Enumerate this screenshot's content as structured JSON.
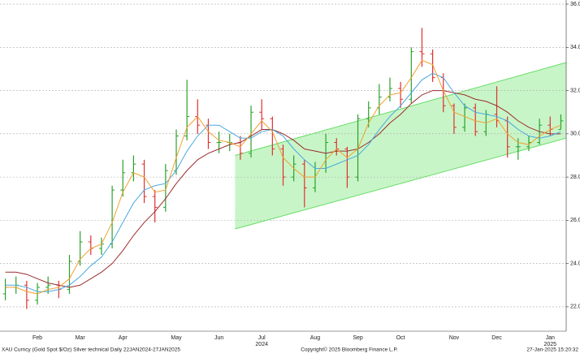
{
  "chart_data": {
    "type": "ohlc",
    "title": "XAU Curncy (Gold Spot  $/Oz) Silver technical  Daily 22JAN2024-27JAN2025",
    "copyright": "Copyright© 2025 Bloomberg Finance L.P.",
    "timestamp": "27-Jan-2025 15:20:32",
    "categories": [
      null,
      null,
      null,
      "Feb",
      null,
      null,
      null,
      "Mar",
      null,
      null,
      null,
      "Apr",
      null,
      null,
      null,
      null,
      "May",
      null,
      null,
      null,
      "Jun",
      null,
      null,
      null,
      "Jul",
      null,
      null,
      null,
      null,
      "Aug",
      null,
      null,
      null,
      "Sep",
      null,
      null,
      null,
      "Oct",
      null,
      null,
      null,
      null,
      "Nov",
      null,
      null,
      null,
      "Dec",
      null,
      null,
      null,
      null,
      "Jan",
      null
    ],
    "category_years": [
      null,
      null,
      null,
      null,
      null,
      null,
      null,
      null,
      null,
      null,
      null,
      null,
      null,
      null,
      null,
      null,
      null,
      null,
      null,
      null,
      null,
      null,
      null,
      null,
      "2024",
      null,
      null,
      null,
      null,
      null,
      null,
      null,
      null,
      null,
      null,
      null,
      null,
      null,
      null,
      null,
      null,
      null,
      null,
      null,
      null,
      null,
      null,
      null,
      null,
      null,
      null,
      "2025",
      null
    ],
    "open": [
      22.6,
      22.9,
      23.0,
      22.3,
      22.9,
      23.0,
      22.8,
      24.1,
      25.0,
      24.7,
      24.9,
      27.4,
      28.2,
      28.6,
      27.1,
      26.6,
      28.3,
      29.9,
      30.8,
      30.4,
      29.6,
      29.6,
      29.6,
      29.1,
      31.0,
      30.7,
      29.3,
      28.0,
      28.6,
      27.5,
      28.4,
      29.6,
      29.3,
      28.0,
      30.7,
      31.2,
      31.7,
      32.1,
      31.6,
      33.8,
      33.7,
      32.6,
      31.3,
      30.3,
      31.2,
      30.1,
      30.9,
      30.6,
      29.4,
      29.4,
      29.6,
      30.4,
      30.2
    ],
    "high": [
      23.3,
      23.4,
      23.2,
      23.1,
      23.4,
      23.2,
      24.4,
      25.5,
      25.3,
      25.2,
      27.6,
      28.8,
      29.0,
      28.8,
      27.4,
      28.6,
      30.2,
      32.5,
      31.6,
      30.7,
      30.1,
      30.0,
      29.9,
      31.3,
      31.6,
      30.8,
      29.5,
      29.0,
      28.8,
      28.7,
      30.0,
      29.8,
      29.4,
      30.9,
      31.5,
      32.3,
      32.6,
      32.4,
      34.0,
      34.9,
      33.9,
      32.8,
      31.4,
      31.4,
      31.4,
      31.1,
      32.2,
      30.8,
      29.8,
      29.9,
      30.7,
      30.8,
      30.9
    ],
    "low": [
      22.3,
      22.6,
      21.9,
      22.1,
      22.6,
      22.4,
      22.6,
      23.9,
      24.4,
      24.4,
      24.7,
      27.1,
      27.8,
      26.8,
      25.9,
      26.4,
      28.1,
      29.7,
      30.0,
      29.3,
      29.1,
      29.2,
      28.8,
      28.9,
      30.2,
      29.0,
      27.6,
      27.8,
      26.6,
      27.3,
      28.2,
      29.0,
      27.5,
      27.8,
      30.3,
      30.9,
      31.5,
      31.2,
      31.4,
      33.1,
      32.4,
      31.0,
      30.0,
      30.1,
      29.9,
      29.9,
      30.3,
      28.9,
      28.8,
      29.2,
      29.5,
      29.9,
      30.2
    ],
    "close": [
      22.9,
      23.0,
      22.3,
      22.9,
      23.0,
      22.8,
      24.1,
      25.0,
      24.7,
      24.9,
      27.4,
      28.2,
      28.6,
      27.1,
      26.6,
      28.3,
      29.9,
      30.8,
      30.4,
      29.6,
      29.6,
      29.6,
      29.1,
      31.0,
      30.7,
      29.3,
      28.0,
      28.6,
      27.5,
      28.4,
      29.6,
      29.3,
      28.0,
      30.7,
      31.2,
      31.7,
      32.1,
      31.6,
      33.8,
      33.7,
      32.6,
      31.3,
      30.3,
      31.2,
      30.1,
      30.9,
      30.6,
      29.4,
      29.4,
      29.6,
      30.4,
      30.2,
      30.6
    ],
    "up_color": "#2ca02c",
    "down_color": "#e03030",
    "series": [
      {
        "color": "#9b2d2d",
        "values": [
          23.6,
          23.6,
          23.5,
          23.3,
          23.1,
          23.0,
          22.9,
          23.0,
          23.3,
          23.6,
          24.0,
          24.6,
          25.3,
          25.9,
          26.4,
          27.0,
          27.7,
          28.3,
          28.8,
          29.1,
          29.3,
          29.5,
          29.6,
          29.9,
          30.2,
          30.2,
          30.0,
          29.7,
          29.3,
          29.2,
          29.1,
          29.2,
          29.2,
          29.3,
          29.6,
          30.0,
          30.5,
          30.9,
          31.4,
          31.8,
          32.0,
          32.0,
          31.9,
          31.8,
          31.6,
          31.5,
          31.3,
          31.0,
          30.6,
          30.3,
          30.1,
          30.0,
          30.0
        ]
      },
      {
        "color": "#4aa8e0",
        "values": [
          23.0,
          23.0,
          22.9,
          22.7,
          22.7,
          22.8,
          23.0,
          23.4,
          23.9,
          24.3,
          25.0,
          25.9,
          26.8,
          27.4,
          27.6,
          27.7,
          28.3,
          29.2,
          29.9,
          30.4,
          30.4,
          30.1,
          29.8,
          29.8,
          30.1,
          30.2,
          29.9,
          29.3,
          28.8,
          28.4,
          28.4,
          28.6,
          28.8,
          29.0,
          29.5,
          30.2,
          30.8,
          31.3,
          31.9,
          32.5,
          32.8,
          32.6,
          31.9,
          31.3,
          31.0,
          30.9,
          30.8,
          30.6,
          30.2,
          29.9,
          29.8,
          29.9,
          30.1
        ]
      },
      {
        "color": "#f0a030",
        "values": [
          22.9,
          22.9,
          22.7,
          22.6,
          22.8,
          22.9,
          23.3,
          24.2,
          24.7,
          24.9,
          25.9,
          27.3,
          28.2,
          28.0,
          27.3,
          27.4,
          28.9,
          30.3,
          30.8,
          30.1,
          29.7,
          29.6,
          29.4,
          30.0,
          30.6,
          30.1,
          28.9,
          28.4,
          28.0,
          28.0,
          28.8,
          29.3,
          28.9,
          29.3,
          30.5,
          31.3,
          31.8,
          31.9,
          32.6,
          33.4,
          33.2,
          32.0,
          31.0,
          30.8,
          30.6,
          30.5,
          30.7,
          30.0,
          29.6,
          29.5,
          29.9,
          30.2,
          30.4
        ]
      }
    ],
    "channel": {
      "x": [
        21.5,
        52.5
      ],
      "lower": [
        25.6,
        29.8
      ],
      "upper": [
        29.0,
        33.3
      ],
      "fill": "#c8f5c8",
      "color": "#66dd66"
    },
    "ylim": [
      20.87,
      36.19
    ],
    "yticks": [
      {
        "value": 22,
        "label": "22.0"
      },
      {
        "value": 24,
        "label": "24.0"
      },
      {
        "value": 26,
        "label": "26.0"
      },
      {
        "value": 28,
        "label": "28.0"
      },
      {
        "value": 30,
        "label": "30.0"
      },
      {
        "value": 32,
        "label": "32.0"
      },
      {
        "value": 34,
        "label": "34.0"
      },
      {
        "value": 36,
        "label": "36.0"
      }
    ],
    "grid": true
  }
}
